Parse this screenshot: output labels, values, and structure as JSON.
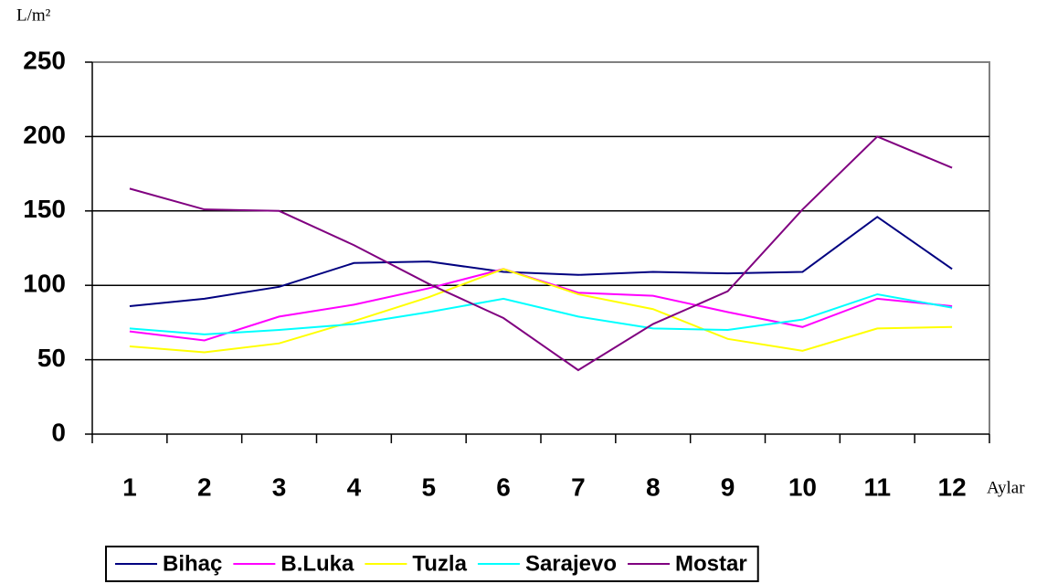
{
  "chart_data": {
    "type": "line",
    "y_label": "L/m²",
    "x_label": "Aylar",
    "categories": [
      "1",
      "2",
      "3",
      "4",
      "5",
      "6",
      "7",
      "8",
      "9",
      "10",
      "11",
      "12"
    ],
    "series": [
      {
        "name": "Bihaç",
        "color": "#000080",
        "values": [
          86,
          91,
          99,
          115,
          116,
          109,
          107,
          109,
          108,
          109,
          146,
          111
        ]
      },
      {
        "name": "B.Luka",
        "color": "#ff00ff",
        "values": [
          69,
          63,
          79,
          87,
          98,
          111,
          95,
          93,
          82,
          72,
          91,
          86
        ]
      },
      {
        "name": "Tuzla",
        "color": "#ffff00",
        "values": [
          59,
          55,
          61,
          76,
          92,
          111,
          94,
          84,
          64,
          56,
          71,
          72
        ]
      },
      {
        "name": "Sarajevo",
        "color": "#00ffff",
        "values": [
          71,
          67,
          70,
          74,
          82,
          91,
          79,
          71,
          70,
          77,
          94,
          85
        ]
      },
      {
        "name": "Mostar",
        "color": "#800080",
        "values": [
          165,
          151,
          150,
          127,
          101,
          78,
          43,
          74,
          96,
          151,
          200,
          179
        ]
      }
    ],
    "ylim": [
      0,
      250
    ],
    "yticks": [
      0,
      50,
      100,
      150,
      200,
      250
    ],
    "grid": true,
    "legend": "bottom"
  }
}
